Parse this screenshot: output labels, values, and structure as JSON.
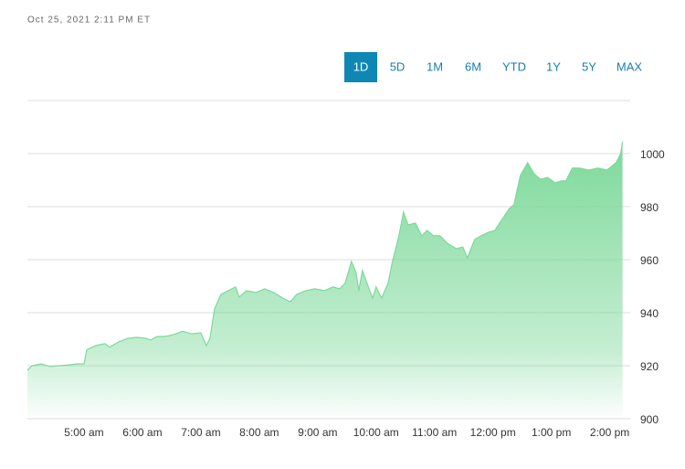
{
  "timestamp": "Oct 25, 2021 2:11 PM ET",
  "controls": {
    "ranges": [
      "1D",
      "5D",
      "1M",
      "6M",
      "YTD",
      "1Y",
      "5Y",
      "MAX"
    ],
    "selected": 0
  },
  "chart_data": {
    "type": "area",
    "color": "#7dd99a",
    "grid": true,
    "x": [
      4.031,
      4.109,
      4.266,
      4.422,
      4.578,
      4.734,
      4.891,
      5.0,
      5.047,
      5.203,
      5.359,
      5.438,
      5.594,
      5.75,
      5.906,
      6.063,
      6.141,
      6.25,
      6.375,
      6.531,
      6.688,
      6.844,
      7.0,
      7.094,
      7.156,
      7.234,
      7.344,
      7.469,
      7.594,
      7.656,
      7.781,
      7.938,
      8.094,
      8.25,
      8.406,
      8.531,
      8.641,
      8.797,
      8.953,
      9.109,
      9.266,
      9.375,
      9.469,
      9.578,
      9.656,
      9.703,
      9.766,
      9.859,
      9.938,
      10.0,
      10.094,
      10.203,
      10.281,
      10.391,
      10.469,
      10.547,
      10.672,
      10.781,
      10.875,
      10.984,
      11.094,
      11.219,
      11.375,
      11.484,
      11.563,
      11.688,
      11.797,
      11.922,
      12.031,
      12.156,
      12.281,
      12.359,
      12.469,
      12.594,
      12.703,
      12.813,
      12.938,
      13.063,
      13.172,
      13.25,
      13.359,
      13.484,
      13.641,
      13.797,
      13.953,
      14.109,
      14.188,
      14.219
    ],
    "values": [
      918.3,
      920.0,
      920.7,
      919.7,
      920.0,
      920.3,
      920.7,
      920.7,
      926.0,
      927.6,
      928.3,
      927.0,
      929.0,
      930.3,
      930.7,
      930.3,
      929.7,
      931.0,
      931.0,
      931.7,
      933.0,
      932.0,
      932.4,
      927.6,
      930.3,
      941.4,
      946.9,
      948.3,
      949.7,
      945.9,
      948.3,
      947.6,
      949.0,
      947.6,
      945.5,
      944.1,
      946.9,
      948.3,
      949.0,
      948.3,
      949.7,
      949.0,
      951.0,
      959.3,
      955.2,
      948.3,
      955.9,
      950.3,
      945.5,
      949.7,
      945.5,
      951.0,
      959.3,
      969.0,
      977.9,
      973.1,
      973.8,
      969.0,
      971.0,
      969.0,
      969.0,
      966.2,
      964.1,
      964.8,
      960.7,
      967.6,
      969.0,
      970.3,
      971.0,
      975.2,
      979.3,
      980.7,
      991.7,
      996.6,
      992.4,
      990.3,
      991.0,
      989.0,
      989.7,
      989.7,
      994.5,
      994.5,
      993.8,
      994.5,
      993.8,
      996.6,
      1000.0,
      1004.5
    ],
    "xlim": [
      4,
      14.35
    ],
    "xticks": [
      {
        "value": 5,
        "label": "5:00 am"
      },
      {
        "value": 6,
        "label": "6:00 am"
      },
      {
        "value": 7,
        "label": "7:00 am"
      },
      {
        "value": 8,
        "label": "8:00 am"
      },
      {
        "value": 9,
        "label": "9:00 am"
      },
      {
        "value": 10,
        "label": "10:00 am"
      },
      {
        "value": 11,
        "label": "11:00 am"
      },
      {
        "value": 12,
        "label": "12:00 pm"
      },
      {
        "value": 13,
        "label": "1:00 pm"
      },
      {
        "value": 14,
        "label": "2:00 pm"
      }
    ],
    "ylim": [
      900,
      1020
    ],
    "yticks": [
      900,
      920,
      940,
      960,
      980,
      1000
    ]
  }
}
